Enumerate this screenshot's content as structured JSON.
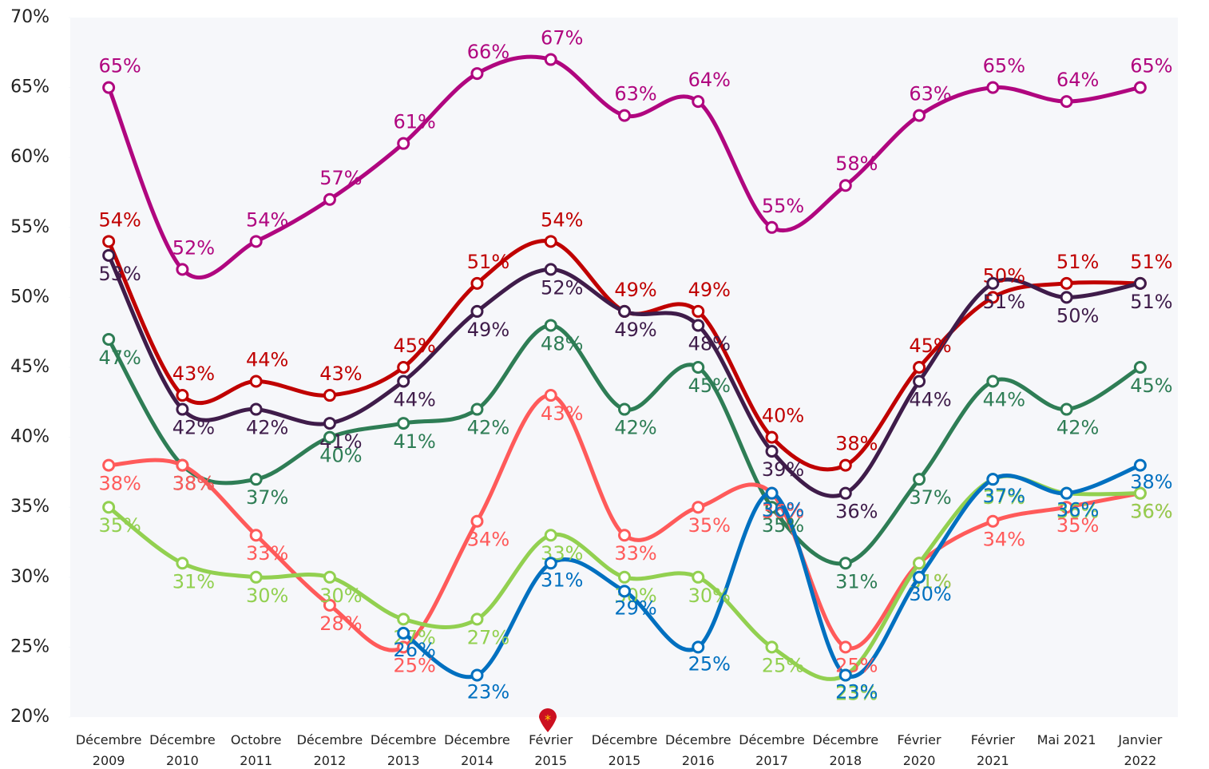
{
  "chart_data": {
    "type": "line",
    "categories": [
      "Décembre 2009",
      "Décembre 2010",
      "Octobre 2011",
      "Décembre 2012",
      "Décembre 2013",
      "Décembre 2014",
      "Février 2015",
      "Décembre 2015",
      "Décembre 2016",
      "Décembre 2017",
      "Décembre 2018",
      "Février 2020",
      "Février 2021",
      "Mai 2021",
      "Janvier 2022"
    ],
    "ylim": [
      20,
      70
    ],
    "yticks": [
      {
        "value": 20,
        "label": "20%"
      },
      {
        "value": 25,
        "label": "25%"
      },
      {
        "value": 30,
        "label": "30%"
      },
      {
        "value": 35,
        "label": "35%"
      },
      {
        "value": 40,
        "label": "40%"
      },
      {
        "value": 45,
        "label": "45%"
      },
      {
        "value": 50,
        "label": "50%"
      },
      {
        "value": 55,
        "label": "55%"
      },
      {
        "value": 60,
        "label": "60%"
      },
      {
        "value": 65,
        "label": "65%"
      },
      {
        "value": 70,
        "label": "70%"
      }
    ],
    "grid": false,
    "smooth": true,
    "series": [
      {
        "color": "#b0067f",
        "values": [
          65,
          52,
          54,
          57,
          61,
          66,
          67,
          63,
          64,
          55,
          58,
          63,
          65,
          64,
          65
        ],
        "value_labels": [
          "65%",
          "52%",
          "54%",
          "57%",
          "61%",
          "66%",
          "67%",
          "63%",
          "64%",
          "55%",
          "58%",
          "63%",
          "65%",
          "64%",
          "65%"
        ]
      },
      {
        "color": "#c00000",
        "values": [
          54,
          43,
          44,
          43,
          45,
          51,
          54,
          49,
          49,
          40,
          38,
          45,
          50,
          51,
          51
        ],
        "value_labels": [
          "54%",
          "43%",
          "44%",
          "43%",
          "45%",
          "51%",
          "54%",
          "49%",
          "49%",
          "40%",
          "38%",
          "45%",
          "50%",
          "51%",
          "51%"
        ]
      },
      {
        "color": "#3f1c4a",
        "values": [
          53,
          42,
          42,
          41,
          44,
          49,
          52,
          49,
          48,
          39,
          36,
          44,
          51,
          50,
          51
        ],
        "value_labels": [
          "53%",
          "42%",
          "42%",
          "41%",
          "44%",
          "49%",
          "52%",
          "49%",
          "48%",
          "39%",
          "36%",
          "44%",
          "51%",
          "50%",
          "51%"
        ]
      },
      {
        "color": "#2e7d55",
        "values": [
          47,
          38,
          37,
          40,
          41,
          42,
          48,
          42,
          45,
          35,
          31,
          37,
          44,
          42,
          45
        ],
        "value_labels": [
          "47%",
          "38%",
          "37%",
          "40%",
          "41%",
          "42%",
          "48%",
          "42%",
          "45%",
          "35%",
          "31%",
          "37%",
          "44%",
          "42%",
          "45%"
        ]
      },
      {
        "color": "#ff5a5a",
        "values": [
          38,
          38,
          33,
          28,
          25,
          34,
          43,
          33,
          35,
          36,
          25,
          31,
          34,
          35,
          36
        ],
        "value_labels": [
          "38%",
          "38%",
          "33%",
          "28%",
          "25%",
          "34%",
          "43%",
          "33%",
          "35%",
          "36%",
          "25%",
          "31%",
          "34%",
          "35%",
          "36%"
        ]
      },
      {
        "color": "#92d050",
        "values": [
          35,
          31,
          30,
          30,
          27,
          27,
          33,
          30,
          30,
          25,
          23,
          31,
          37,
          36,
          36
        ],
        "value_labels": [
          "35%",
          "31%",
          "30%",
          "30%",
          "27%",
          "27%",
          "33%",
          "30%",
          "30%",
          "25%",
          "23%",
          "31%",
          "37%",
          "36%",
          "36%"
        ]
      },
      {
        "color": "#0070c0",
        "values": [
          null,
          null,
          null,
          null,
          26,
          23,
          31,
          29,
          25,
          36,
          23,
          30,
          37,
          36,
          38
        ],
        "value_labels": [
          null,
          null,
          null,
          null,
          "26%",
          "23%",
          "31%",
          "29%",
          "25%",
          "36%",
          "23%",
          "30%",
          "37%",
          "36%",
          "38%"
        ]
      }
    ]
  }
}
